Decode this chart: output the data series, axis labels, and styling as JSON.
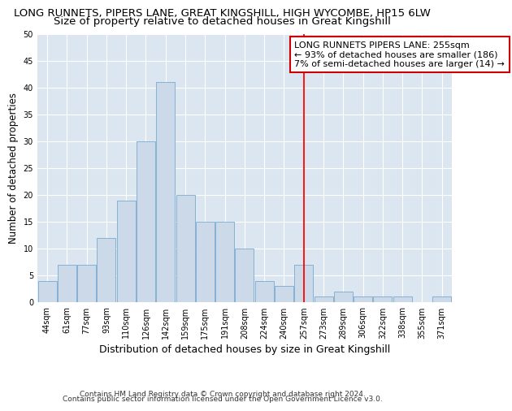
{
  "title": "LONG RUNNETS, PIPERS LANE, GREAT KINGSHILL, HIGH WYCOMBE, HP15 6LW",
  "subtitle": "Size of property relative to detached houses in Great Kingshill",
  "xlabel": "Distribution of detached houses by size in Great Kingshill",
  "ylabel": "Number of detached properties",
  "categories": [
    "44sqm",
    "61sqm",
    "77sqm",
    "93sqm",
    "110sqm",
    "126sqm",
    "142sqm",
    "159sqm",
    "175sqm",
    "191sqm",
    "208sqm",
    "224sqm",
    "240sqm",
    "257sqm",
    "273sqm",
    "289sqm",
    "306sqm",
    "322sqm",
    "338sqm",
    "355sqm",
    "371sqm"
  ],
  "values": [
    4,
    7,
    7,
    12,
    19,
    30,
    41,
    20,
    15,
    15,
    10,
    4,
    3,
    7,
    1,
    2,
    1,
    1,
    1,
    0,
    1
  ],
  "bar_color": "#ccd9e8",
  "bar_edge_color": "#7aaad0",
  "bar_linewidth": 0.6,
  "red_line_index": 13,
  "annotation_line1": "LONG RUNNETS PIPERS LANE: 255sqm",
  "annotation_line2": "← 93% of detached houses are smaller (186)",
  "annotation_line3": "7% of semi-detached houses are larger (14) →",
  "annotation_box_facecolor": "#ffffff",
  "annotation_box_edgecolor": "#cc0000",
  "ylim": [
    0,
    50
  ],
  "yticks": [
    0,
    5,
    10,
    15,
    20,
    25,
    30,
    35,
    40,
    45,
    50
  ],
  "background_color": "#dce6f0",
  "grid_color": "#ffffff",
  "footer_line1": "Contains HM Land Registry data © Crown copyright and database right 2024.",
  "footer_line2": "Contains public sector information licensed under the Open Government Licence v3.0.",
  "title_fontsize": 9.5,
  "subtitle_fontsize": 9.5,
  "xlabel_fontsize": 9,
  "ylabel_fontsize": 8.5,
  "tick_fontsize": 7,
  "annotation_fontsize": 8,
  "footer_fontsize": 6.5
}
